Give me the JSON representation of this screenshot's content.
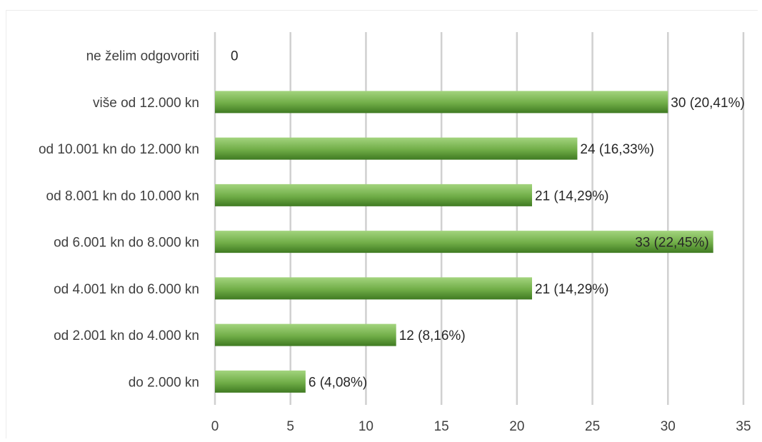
{
  "chart_data": {
    "type": "bar",
    "orientation": "horizontal",
    "categories": [
      "ne želim odgovoriti",
      "više od 12.000 kn",
      "od 10.001 kn do 12.000 kn",
      "od 8.001 kn do 10.000 kn",
      "od 6.001 kn do 8.000 kn",
      "od 4.001 kn do 6.000 kn",
      "od 2.001 kn do 4.000 kn",
      "do 2.000 kn"
    ],
    "values": [
      0,
      30,
      24,
      21,
      33,
      21,
      12,
      6
    ],
    "data_labels": [
      "0",
      "30 (20,41%)",
      "24 (16,33%)",
      "21 (14,29%)",
      "33 (22,45%)",
      "21 (14,29%)",
      "12 (8,16%)",
      "6 (4,08%)"
    ],
    "xlim": [
      0,
      35
    ],
    "xticks": [
      "0",
      "5",
      "10",
      "15",
      "20",
      "25",
      "30",
      "35"
    ],
    "grid": "vertical",
    "legend": "none",
    "bar_color_light": "#a3d47e",
    "bar_color_mid": "#70ad47",
    "bar_color_dark": "#3f7a22"
  }
}
